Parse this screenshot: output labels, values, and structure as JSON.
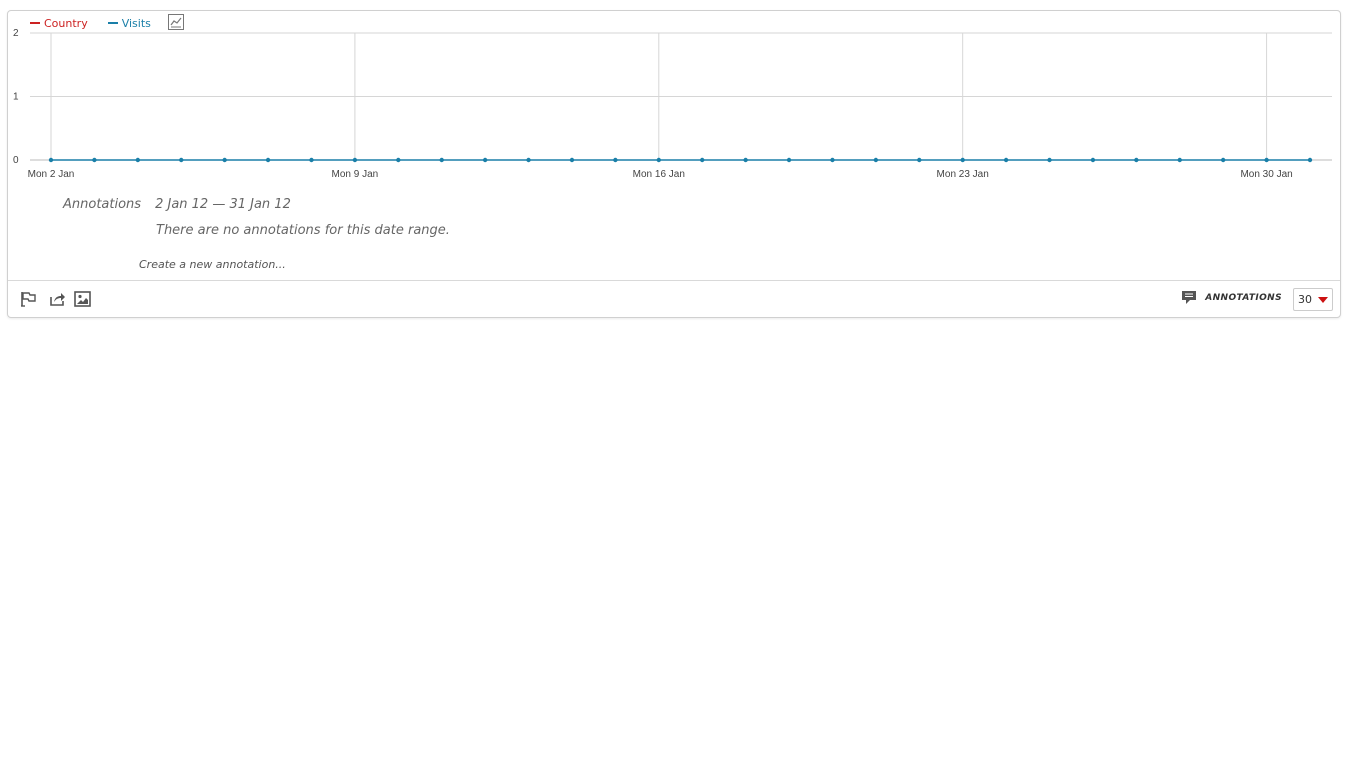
{
  "legend": {
    "items": [
      {
        "label": "Country",
        "color": "#cc2222"
      },
      {
        "label": "Visits",
        "color": "#1a7fa8"
      }
    ],
    "chart_type_icon": "line-chart-icon"
  },
  "annotations": {
    "title": "Annotations",
    "range": "2 Jan 12 — 31 Jan 12",
    "empty_message": "There are no annotations for this date range.",
    "create_link": "Create a new annotation..."
  },
  "footer": {
    "icons": [
      "flag-icon",
      "export-icon",
      "image-icon"
    ],
    "annotations_icon": "comment-icon",
    "annotations_label": "ANNOTATIONS",
    "period_value": "30"
  },
  "chart_data": {
    "type": "line",
    "series": [
      {
        "name": "Visits",
        "color": "#1a7fa8",
        "values": [
          0,
          0,
          0,
          0,
          0,
          0,
          0,
          0,
          0,
          0,
          0,
          0,
          0,
          0,
          0,
          0,
          0,
          0,
          0,
          0,
          0,
          0,
          0,
          0,
          0,
          0,
          0,
          0,
          0,
          0
        ]
      }
    ],
    "x": [
      "2012-01-02",
      "2012-01-03",
      "2012-01-04",
      "2012-01-05",
      "2012-01-06",
      "2012-01-07",
      "2012-01-08",
      "2012-01-09",
      "2012-01-10",
      "2012-01-11",
      "2012-01-12",
      "2012-01-13",
      "2012-01-14",
      "2012-01-15",
      "2012-01-16",
      "2012-01-17",
      "2012-01-18",
      "2012-01-19",
      "2012-01-20",
      "2012-01-21",
      "2012-01-22",
      "2012-01-23",
      "2012-01-24",
      "2012-01-25",
      "2012-01-26",
      "2012-01-27",
      "2012-01-28",
      "2012-01-29",
      "2012-01-30",
      "2012-01-31"
    ],
    "x_tick_labels": [
      {
        "date": "2012-01-02",
        "label": "Mon 2 Jan"
      },
      {
        "date": "2012-01-09",
        "label": "Mon 9 Jan"
      },
      {
        "date": "2012-01-16",
        "label": "Mon 16 Jan"
      },
      {
        "date": "2012-01-23",
        "label": "Mon 23 Jan"
      },
      {
        "date": "2012-01-30",
        "label": "Mon 30 Jan"
      }
    ],
    "y_ticks": [
      0,
      1,
      2
    ],
    "ylim": [
      0,
      2
    ],
    "grid": true,
    "legend_placement": "top-left"
  }
}
